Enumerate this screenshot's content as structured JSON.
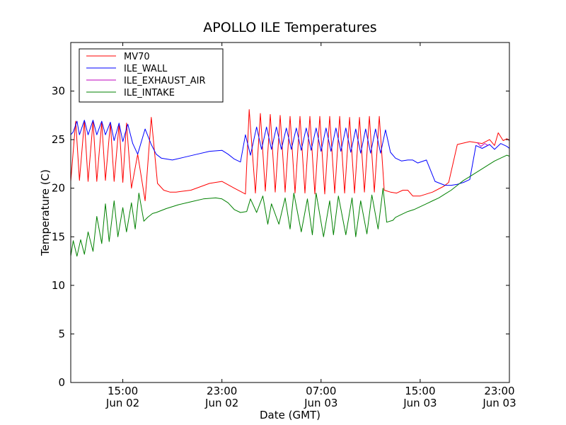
{
  "chart_data": {
    "type": "line",
    "title": "APOLLO ILE Temperatures",
    "xlabel": "Date (GMT)",
    "ylabel": "Temperature (C)",
    "ylim": [
      0,
      35
    ],
    "xlim": [
      10.8,
      46.2
    ],
    "grid": false,
    "legend_position": "top-left",
    "yticks": [
      0,
      5,
      10,
      15,
      20,
      25,
      30
    ],
    "xticks": [
      {
        "x": 15,
        "label": "15:00",
        "date": "Jun 02"
      },
      {
        "x": 23,
        "label": "23:00",
        "date": "Jun 02"
      },
      {
        "x": 31,
        "label": "07:00",
        "date": "Jun 03"
      },
      {
        "x": 39,
        "label": "15:00",
        "date": "Jun 03"
      },
      {
        "x": 47,
        "label": "23:00",
        "date": "Jun 03"
      }
    ],
    "series": [
      {
        "name": "MV70",
        "color": "#ff0000",
        "x": [
          10.8,
          11.2,
          11.5,
          11.9,
          12.2,
          12.6,
          12.9,
          13.3,
          13.6,
          14.0,
          14.3,
          14.7,
          15.0,
          15.3,
          15.7,
          16.2,
          16.8,
          17.3,
          17.8,
          18.3,
          18.8,
          19.3,
          20.5,
          22.0,
          23.0,
          24.0,
          24.6,
          24.9,
          25.2,
          25.7,
          26.1,
          26.5,
          26.9,
          27.3,
          27.7,
          28.1,
          28.5,
          28.9,
          29.3,
          29.7,
          30.1,
          30.5,
          30.9,
          31.3,
          31.7,
          32.1,
          32.5,
          32.9,
          33.3,
          33.7,
          34.1,
          34.5,
          34.9,
          35.3,
          35.7,
          36.1,
          36.6,
          37.1,
          37.6,
          38.0,
          38.4,
          39.0,
          40.0,
          40.9,
          41.3,
          42.0,
          43.0,
          44.0,
          44.6,
          45.0,
          45.3,
          45.7,
          46.0,
          46.2
        ],
        "values": [
          20.7,
          26.9,
          20.8,
          26.9,
          20.7,
          26.9,
          20.7,
          26.8,
          20.8,
          26.7,
          20.7,
          26.6,
          20.6,
          26.7,
          20.0,
          23.5,
          18.7,
          27.3,
          20.5,
          19.8,
          19.6,
          19.6,
          19.8,
          20.5,
          20.7,
          20.0,
          19.6,
          19.4,
          28.1,
          19.5,
          27.7,
          19.7,
          27.6,
          19.6,
          27.5,
          19.6,
          27.4,
          19.5,
          27.4,
          19.5,
          27.4,
          19.4,
          27.4,
          19.4,
          27.4,
          19.5,
          27.4,
          19.5,
          27.3,
          19.5,
          27.3,
          19.6,
          27.4,
          19.6,
          27.4,
          19.8,
          19.6,
          19.5,
          19.8,
          19.8,
          19.2,
          19.2,
          19.6,
          20.2,
          20.6,
          24.5,
          24.8,
          24.6,
          25.0,
          24.4,
          25.7,
          24.9,
          25.1,
          24.9
        ]
      },
      {
        "name": "ILE_WALL",
        "color": "#0000ff",
        "x": [
          10.8,
          11.0,
          11.3,
          11.5,
          11.9,
          12.2,
          12.6,
          12.9,
          13.3,
          13.6,
          14.0,
          14.3,
          14.7,
          15.0,
          15.4,
          15.8,
          16.2,
          16.8,
          17.3,
          17.7,
          18.1,
          19.0,
          20.0,
          21.0,
          22.0,
          23.0,
          23.5,
          24.0,
          24.5,
          24.9,
          25.3,
          25.8,
          26.2,
          26.6,
          27.0,
          27.4,
          27.8,
          28.2,
          28.6,
          29.0,
          29.4,
          29.8,
          30.2,
          30.6,
          31.0,
          31.4,
          31.8,
          32.2,
          32.6,
          33.0,
          33.4,
          33.8,
          34.2,
          34.6,
          35.0,
          35.4,
          35.8,
          36.2,
          36.6,
          37.0,
          37.5,
          38.0,
          38.4,
          38.8,
          39.5,
          40.2,
          41.0,
          41.5,
          42.0,
          42.5,
          43.0,
          43.5,
          44.0,
          44.6,
          45.0,
          45.5,
          46.0,
          46.2
        ],
        "values": [
          25.5,
          25.8,
          26.9,
          25.5,
          27.0,
          25.5,
          27.0,
          25.5,
          26.9,
          25.5,
          26.8,
          24.9,
          26.7,
          24.8,
          26.6,
          24.6,
          23.5,
          26.1,
          24.5,
          23.5,
          23.1,
          22.9,
          23.2,
          23.5,
          23.8,
          23.9,
          23.5,
          23.0,
          22.7,
          25.5,
          23.4,
          26.3,
          24.0,
          26.3,
          24.0,
          26.3,
          24.0,
          26.2,
          24.0,
          26.2,
          23.9,
          26.2,
          23.9,
          26.2,
          23.8,
          26.2,
          23.8,
          26.2,
          23.8,
          26.2,
          23.7,
          26.1,
          23.6,
          26.1,
          23.6,
          26.1,
          23.6,
          26.0,
          23.7,
          23.1,
          22.8,
          22.9,
          22.9,
          22.6,
          22.9,
          20.7,
          20.3,
          20.3,
          20.4,
          20.6,
          20.9,
          24.4,
          24.1,
          24.5,
          24.0,
          24.6,
          24.3,
          24.1
        ]
      },
      {
        "name": "ILE_EXHAUST_AIR",
        "color": "#bf00bf",
        "x": [
          43.6,
          43.9,
          44.2,
          44.5
        ],
        "values": [
          24.7,
          24.3,
          24.6,
          24.4
        ]
      },
      {
        "name": "ILE_INTAKE",
        "color": "#008000",
        "x": [
          10.8,
          11.0,
          11.3,
          11.6,
          11.9,
          12.2,
          12.6,
          12.9,
          13.3,
          13.6,
          13.9,
          14.3,
          14.6,
          15.0,
          15.3,
          15.7,
          16.0,
          16.3,
          16.7,
          17.0,
          17.4,
          17.7,
          18.5,
          19.5,
          20.5,
          21.5,
          22.5,
          23.0,
          23.5,
          24.0,
          24.5,
          25.0,
          25.3,
          25.8,
          26.3,
          26.7,
          27.0,
          27.6,
          28.1,
          28.5,
          28.8,
          29.4,
          29.9,
          30.3,
          30.6,
          31.2,
          31.7,
          32.0,
          32.4,
          33.0,
          33.5,
          33.8,
          34.2,
          34.7,
          35.1,
          35.6,
          36.0,
          36.3,
          36.8,
          37.0,
          37.5,
          38.0,
          38.5,
          39.0,
          39.5,
          40.0,
          40.5,
          41.0,
          41.5,
          42.0,
          42.5,
          43.0,
          43.5,
          44.0,
          44.5,
          45.0,
          45.5,
          46.0,
          46.2
        ],
        "values": [
          13.0,
          14.6,
          13.0,
          14.7,
          13.2,
          15.5,
          13.5,
          17.1,
          14.3,
          18.4,
          14.5,
          18.7,
          15.0,
          18.0,
          15.5,
          18.5,
          15.8,
          19.5,
          16.6,
          17.0,
          17.4,
          17.5,
          17.9,
          18.3,
          18.6,
          18.9,
          19.0,
          18.9,
          18.5,
          17.8,
          17.5,
          17.6,
          18.9,
          17.5,
          19.2,
          16.3,
          18.4,
          16.3,
          19.0,
          15.8,
          19.5,
          15.5,
          18.9,
          15.2,
          19.5,
          15.0,
          18.7,
          15.2,
          19.2,
          15.2,
          19.0,
          15.0,
          18.7,
          15.3,
          19.3,
          15.8,
          20.0,
          16.5,
          16.7,
          17.0,
          17.3,
          17.6,
          17.8,
          18.1,
          18.4,
          18.7,
          19.0,
          19.4,
          19.8,
          20.3,
          20.8,
          21.2,
          21.6,
          22.0,
          22.4,
          22.8,
          23.1,
          23.4,
          23.3
        ]
      }
    ]
  }
}
